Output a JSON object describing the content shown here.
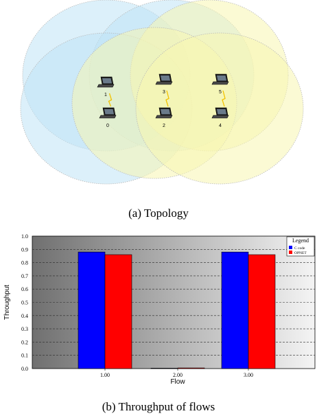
{
  "topology": {
    "caption": "(a) Topology",
    "nodes": [
      {
        "id": "0",
        "label": "0"
      },
      {
        "id": "1",
        "label": "1"
      },
      {
        "id": "2",
        "label": "2"
      },
      {
        "id": "3",
        "label": "3"
      },
      {
        "id": "4",
        "label": "4"
      },
      {
        "id": "5",
        "label": "5"
      }
    ],
    "links": [
      [
        "1",
        "0"
      ],
      [
        "3",
        "2"
      ],
      [
        "5",
        "4"
      ]
    ],
    "colors": {
      "blue": "#bfe3f5",
      "yellow": "#f8f6b0",
      "flash": "#f2c200"
    }
  },
  "throughput": {
    "caption": "(b) Throughput of flows",
    "chart_data": {
      "type": "bar",
      "categories": [
        "1.00",
        "2.00",
        "3.00"
      ],
      "series": [
        {
          "name": "C code",
          "values": [
            0.88,
            0.0,
            0.88
          ],
          "color": "#0000ff"
        },
        {
          "name": "OPNET",
          "values": [
            0.86,
            0.005,
            0.86
          ],
          "color": "#ff0000"
        }
      ],
      "xlabel": "Flow",
      "ylabel": "Throughput",
      "ylim": [
        0,
        1.0
      ],
      "yticks": [
        "0.0",
        "0.1",
        "0.2",
        "0.3",
        "0.4",
        "0.5",
        "0.6",
        "0.7",
        "0.8",
        "0.9",
        "1.0"
      ],
      "legend_title": "Legend",
      "legend_position": "top-right",
      "grid": true
    }
  }
}
